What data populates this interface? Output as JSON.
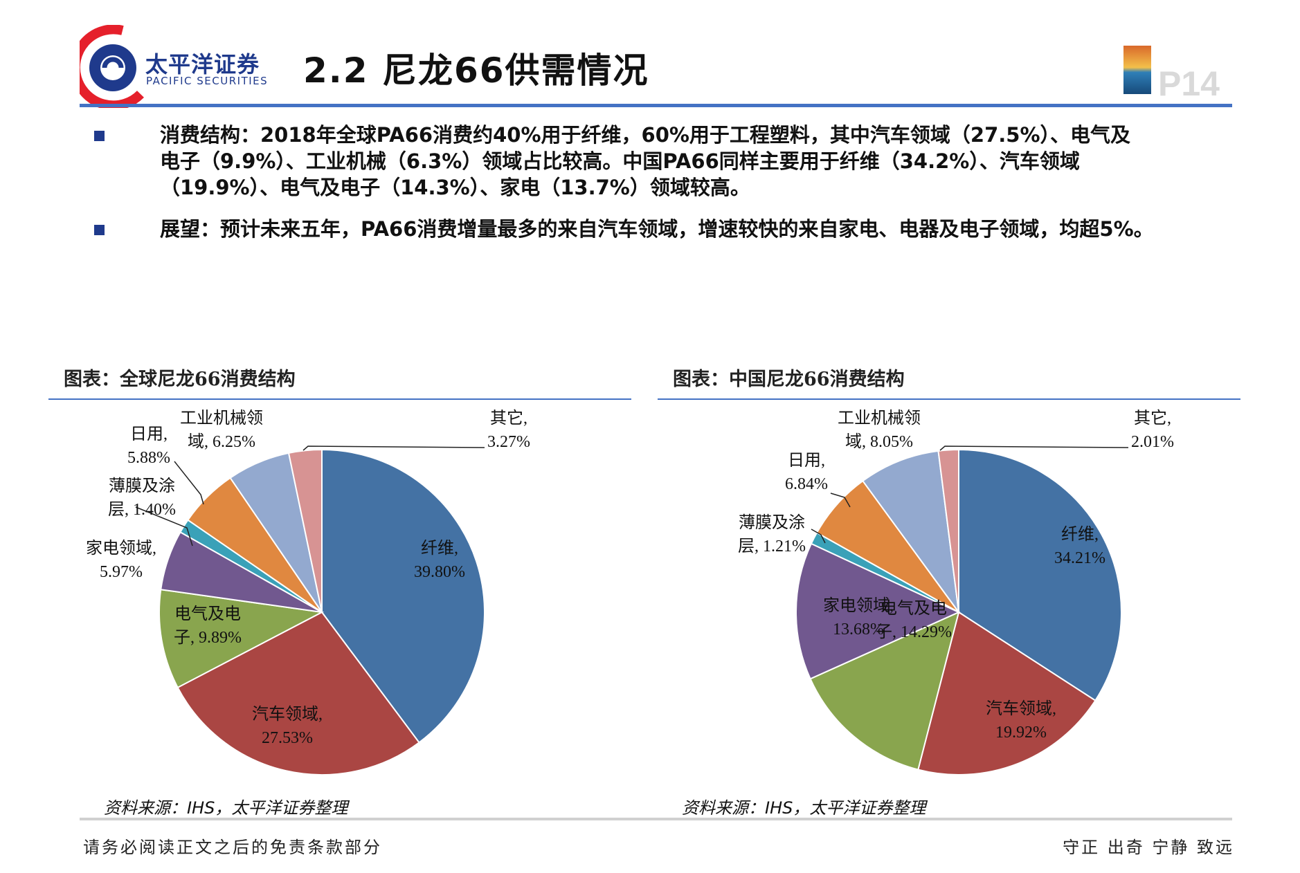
{
  "header": {
    "logo_name": "太平洋证券",
    "logo_en": "PACIFIC SECURITIES",
    "title": "2.2 尼龙66供需情况",
    "page_number": "P14"
  },
  "bullets": [
    "消费结构：2018年全球PA66消费约40%用于纤维，60%用于工程塑料，其中汽车领域（27.5%）、电气及\n电子（9.9%）、工业机械（6.3%）领域占比较高。中国PA66同样主要用于纤维（34.2%）、汽车领域\n（19.9%）、电气及电子（14.3%）、家电（13.7%）领域较高。",
    "展望：预计未来五年，PA66消费增量最多的来自汽车领域，增速较快的来自家电、电器及电子领域，均超5%。"
  ],
  "charts": [
    {
      "title": "图表：全球尼龙66消费结构",
      "source": "资料来源：IHS，太平洋证券整理"
    },
    {
      "title": "图表：中国尼龙66消费结构",
      "source": "资料来源：IHS，太平洋证券整理"
    }
  ],
  "chart_data": [
    {
      "type": "pie",
      "title": "图表：全球尼龙66消费结构",
      "slices": [
        {
          "label_lines": [
            "纤维,",
            "39.80%"
          ],
          "value": 39.8,
          "color": "#4472a4"
        },
        {
          "label_lines": [
            "汽车领域,",
            "27.53%"
          ],
          "value": 27.53,
          "color": "#aa4643"
        },
        {
          "label_lines": [
            "电气及电",
            "子, 9.89%"
          ],
          "value": 9.89,
          "color": "#89a54e"
        },
        {
          "label_lines": [
            "家电领域,",
            "5.97%"
          ],
          "value": 5.97,
          "color": "#71588f"
        },
        {
          "label_lines": [
            "薄膜及涂",
            "层, 1.40%"
          ],
          "value": 1.4,
          "color": "#3aa1b8"
        },
        {
          "label_lines": [
            "日用,",
            "5.88%"
          ],
          "value": 5.88,
          "color": "#e08840"
        },
        {
          "label_lines": [
            "工业机械领",
            "域, 6.25%"
          ],
          "value": 6.25,
          "color": "#93a9cf"
        },
        {
          "label_lines": [
            "其它,",
            "3.27%"
          ],
          "value": 3.27,
          "color": "#d79393"
        }
      ]
    },
    {
      "type": "pie",
      "title": "图表：中国尼龙66消费结构",
      "slices": [
        {
          "label_lines": [
            "纤维,",
            "34.21%"
          ],
          "value": 34.21,
          "color": "#4472a4"
        },
        {
          "label_lines": [
            "汽车领域,",
            "19.92%"
          ],
          "value": 19.92,
          "color": "#aa4643"
        },
        {
          "label_lines": [
            "电气及电",
            "子, 14.29%"
          ],
          "value": 14.29,
          "color": "#89a54e"
        },
        {
          "label_lines": [
            "家电领域,",
            "13.68%"
          ],
          "value": 13.68,
          "color": "#71588f"
        },
        {
          "label_lines": [
            "薄膜及涂",
            "层, 1.21%"
          ],
          "value": 1.21,
          "color": "#3aa1b8"
        },
        {
          "label_lines": [
            "日用,",
            "6.84%"
          ],
          "value": 6.84,
          "color": "#e08840"
        },
        {
          "label_lines": [
            "工业机械领",
            "域, 8.05%"
          ],
          "value": 8.05,
          "color": "#93a9cf"
        },
        {
          "label_lines": [
            "其它,",
            "2.01%"
          ],
          "value": 2.01,
          "color": "#d79393"
        }
      ]
    }
  ],
  "footer": {
    "disclaimer": "请务必阅读正文之后的免责条款部分",
    "motto": "守正 出奇 宁静 致远"
  }
}
